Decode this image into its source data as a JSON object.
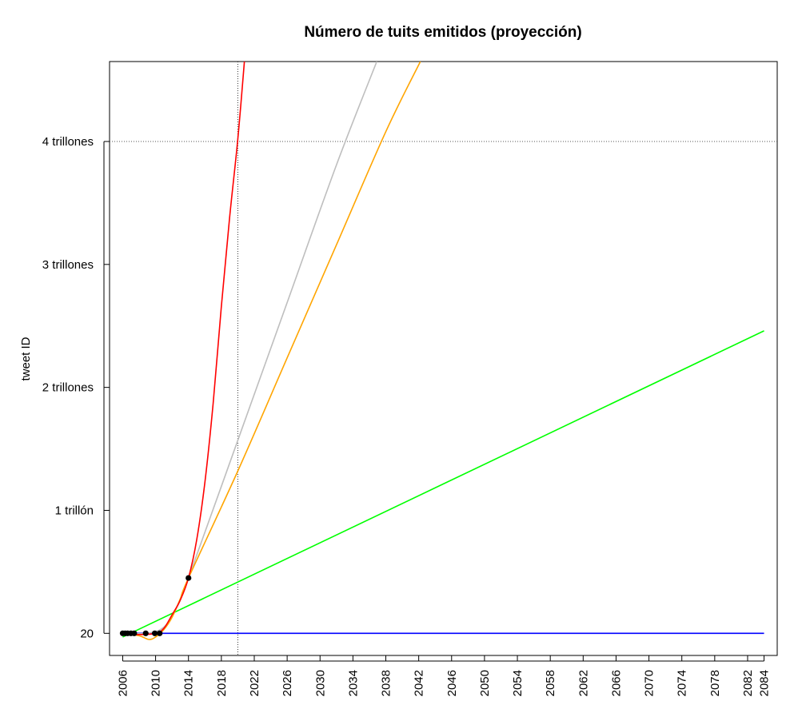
{
  "chart_data": {
    "type": "line",
    "title": "Número de tuits emitidos (proyección)",
    "xlabel": "",
    "ylabel": "tweet ID",
    "xlim": [
      2004.4,
      2085.6
    ],
    "ylim": [
      -0.18,
      4.65
    ],
    "x_ticks": [
      2006,
      2010,
      2014,
      2018,
      2022,
      2026,
      2030,
      2034,
      2038,
      2042,
      2046,
      2050,
      2054,
      2058,
      2062,
      2066,
      2070,
      2074,
      2078,
      2082,
      2084
    ],
    "y_ticks": [
      {
        "value": 0,
        "label": "20"
      },
      {
        "value": 1,
        "label": "1 trillón"
      },
      {
        "value": 2,
        "label": "2 trillones"
      },
      {
        "value": 3,
        "label": "3 trillones"
      },
      {
        "value": 4,
        "label": "4 trillones"
      }
    ],
    "y_units_note_value": "trillones",
    "reference_lines": {
      "horizontal": 4,
      "vertical": 2020
    },
    "points": [
      {
        "x": 2006.0,
        "y": 0.0
      },
      {
        "x": 2006.3,
        "y": 0.0
      },
      {
        "x": 2006.6,
        "y": 0.0
      },
      {
        "x": 2007.0,
        "y": 0.0
      },
      {
        "x": 2007.4,
        "y": 0.0
      },
      {
        "x": 2008.8,
        "y": 0.0
      },
      {
        "x": 2009.9,
        "y": 0.0
      },
      {
        "x": 2010.5,
        "y": 0.0
      },
      {
        "x": 2014.0,
        "y": 0.45
      }
    ],
    "series": [
      {
        "color": "#0000ff",
        "x": [
          2006,
          2084
        ],
        "y": [
          0.0,
          0.0
        ]
      },
      {
        "color": "#00ff00",
        "x": [
          2006,
          2084
        ],
        "y": [
          -0.03,
          2.46
        ]
      },
      {
        "color": "#bebebe",
        "x": [
          2006,
          2009,
          2011,
          2012.5,
          2014,
          2020,
          2026,
          2032,
          2036.9
        ],
        "y": [
          0.0,
          0.0,
          0.05,
          0.2,
          0.45,
          1.57,
          2.69,
          3.81,
          4.65
        ]
      },
      {
        "color": "#ffa500",
        "x": [
          2006,
          2008,
          2009.2,
          2010,
          2011,
          2012,
          2013,
          2014,
          2020,
          2026,
          2032,
          2038,
          2042.2
        ],
        "y": [
          0.0,
          -0.02,
          -0.05,
          -0.03,
          0.03,
          0.13,
          0.28,
          0.45,
          1.32,
          2.24,
          3.16,
          4.08,
          4.65
        ]
      },
      {
        "color": "#ff0000",
        "x": [
          2006,
          2008,
          2010,
          2011,
          2012,
          2013,
          2014,
          2015,
          2016,
          2017,
          2018,
          2019,
          2020,
          2020.8
        ],
        "y": [
          0.0,
          -0.01,
          0.0,
          0.04,
          0.15,
          0.27,
          0.45,
          0.76,
          1.23,
          1.87,
          2.66,
          3.38,
          4.02,
          4.65
        ]
      }
    ]
  }
}
